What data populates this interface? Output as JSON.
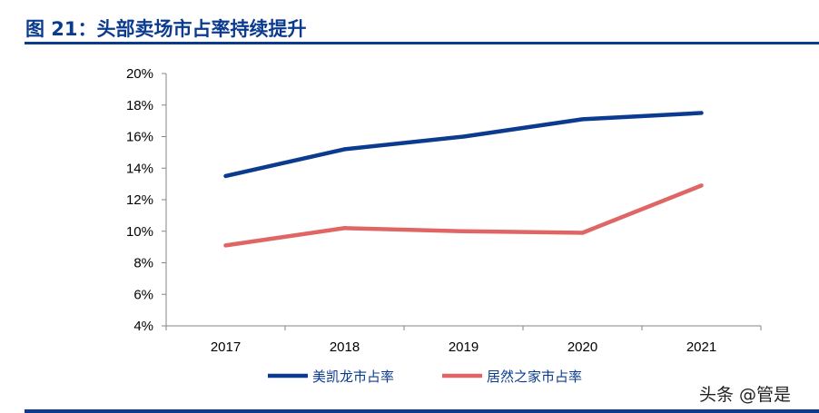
{
  "title": "图 21：头部卖场市占率持续提升",
  "watermark": "头条 @管是",
  "chart_data": {
    "type": "line",
    "title": "",
    "xlabel": "",
    "ylabel": "",
    "categories": [
      "2017",
      "2018",
      "2019",
      "2020",
      "2021"
    ],
    "ylim": [
      4,
      20
    ],
    "yticks": [
      "4%",
      "6%",
      "8%",
      "10%",
      "12%",
      "14%",
      "16%",
      "18%",
      "20%"
    ],
    "grid": false,
    "legend": "bottom",
    "series": [
      {
        "name": "美凯龙市占率",
        "color": "#0b3b8f",
        "values": [
          13.5,
          15.2,
          16.0,
          17.1,
          17.5
        ]
      },
      {
        "name": "居然之家市占率",
        "color": "#e06666",
        "values": [
          9.1,
          10.2,
          10.0,
          9.9,
          12.9
        ]
      }
    ]
  }
}
